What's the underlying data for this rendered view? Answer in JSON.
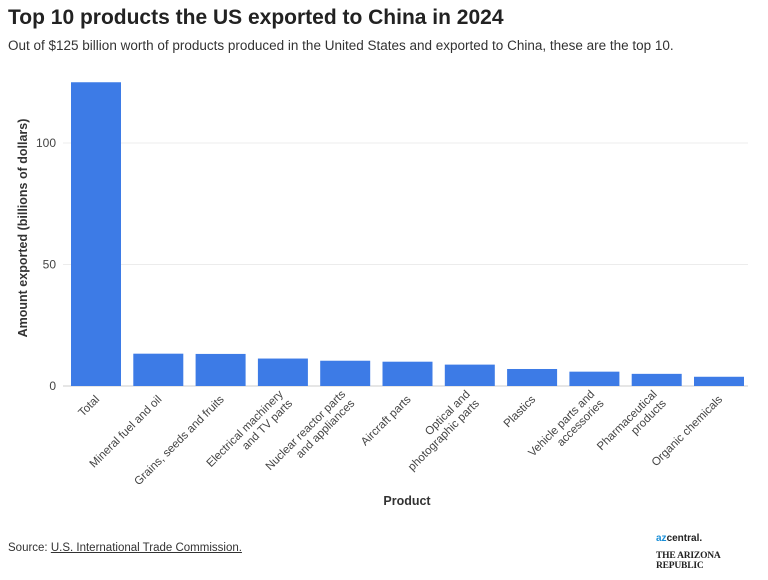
{
  "title": "Top 10 products the US exported to China in 2024",
  "subtitle": "Out of $125 billion worth of products produced in the United States and exported to China, these are the top 10.",
  "source": {
    "prefix": "Source: ",
    "link": "U.S. International Trade Commission."
  },
  "logos": {
    "azcentral": "azcentral.",
    "republic": "THE ARIZONA REPUBLIC"
  },
  "chart_data": {
    "type": "bar",
    "xlabel": "Product",
    "ylabel": "Amount exported (billions of dollars)",
    "ylim": [
      0,
      130
    ],
    "yticks": [
      0,
      50,
      100
    ],
    "grid": true,
    "bar_color": "#3d7be6",
    "categories": [
      "Total",
      "Mineral fuel and oil",
      "Grains, seeds and fruits",
      "Electrical machinery and TV parts",
      "Nuclear reactor parts and appliances",
      "Aircraft parts",
      "Optical and photographic parts",
      "Plastics",
      "Vehicle parts and accessories",
      "Pharmaceutical products",
      "Organic chemicals"
    ],
    "category_lines": [
      [
        "Total"
      ],
      [
        "Mineral fuel and oil"
      ],
      [
        "Grains, seeds and fruits"
      ],
      [
        "Electrical machinery",
        "and TV parts"
      ],
      [
        "Nuclear reactor parts",
        "and appliances"
      ],
      [
        "Aircraft parts"
      ],
      [
        "Optical and",
        "photographic parts"
      ],
      [
        "Plastics"
      ],
      [
        "Vehicle parts and",
        "accessories"
      ],
      [
        "Pharmaceutical",
        "products"
      ],
      [
        "Organic chemicals"
      ]
    ],
    "values": [
      125,
      13.3,
      13.2,
      11.3,
      10.4,
      10.0,
      8.8,
      7.0,
      5.9,
      5.0,
      3.8
    ]
  }
}
